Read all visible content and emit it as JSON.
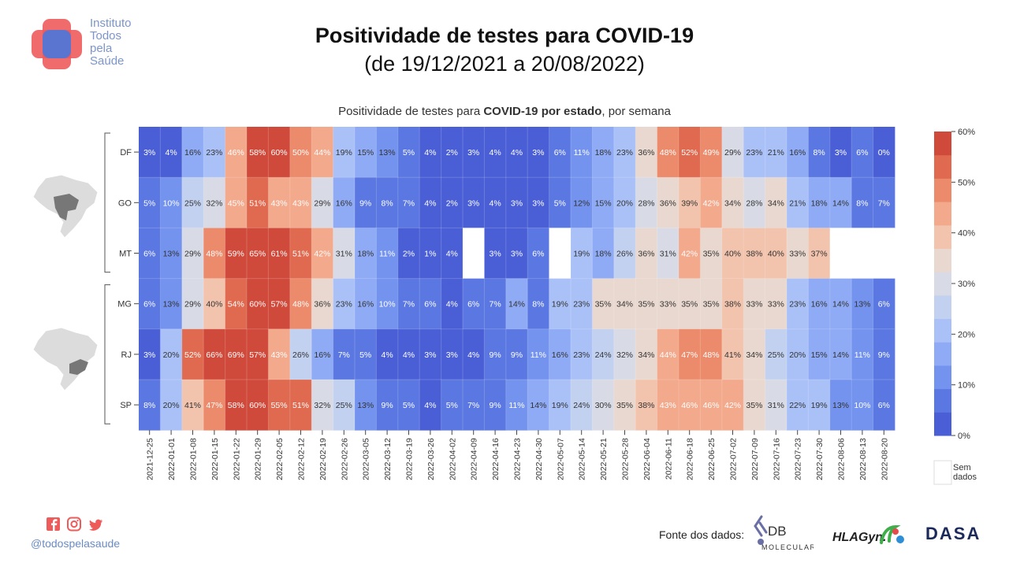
{
  "org": {
    "name_lines": [
      "Instituto",
      "Todos",
      "pela",
      "Saúde"
    ]
  },
  "header": {
    "title": "Positividade de testes para COVID-19",
    "subtitle": "(de 19/12/2021 a 20/08/2022)"
  },
  "chart_data": {
    "type": "heatmap",
    "title_parts": [
      {
        "text": "Positividade de testes para ",
        "bold": false
      },
      {
        "text": "COVID-19 por estado",
        "bold": true
      },
      {
        "text": ", por semana",
        "bold": false
      }
    ],
    "x": [
      "2021-12-25",
      "2022-01-01",
      "2022-01-08",
      "2022-01-15",
      "2022-01-22",
      "2022-01-29",
      "2022-02-05",
      "2022-02-12",
      "2022-02-19",
      "2022-02-26",
      "2022-03-05",
      "2022-03-12",
      "2022-03-19",
      "2022-03-26",
      "2022-04-02",
      "2022-04-09",
      "2022-04-16",
      "2022-04-23",
      "2022-04-30",
      "2022-05-07",
      "2022-05-14",
      "2022-05-21",
      "2022-05-28",
      "2022-06-04",
      "2022-06-11",
      "2022-06-18",
      "2022-06-25",
      "2022-07-02",
      "2022-07-09",
      "2022-07-16",
      "2022-07-23",
      "2022-07-30",
      "2022-08-06",
      "2022-08-13",
      "2022-08-20"
    ],
    "y": [
      "DF",
      "GO",
      "MT",
      "MG",
      "RJ",
      "SP"
    ],
    "values": [
      [
        3,
        4,
        16,
        23,
        46,
        58,
        60,
        50,
        44,
        19,
        15,
        13,
        5,
        4,
        2,
        3,
        4,
        4,
        3,
        6,
        11,
        18,
        23,
        36,
        48,
        52,
        49,
        29,
        23,
        21,
        16,
        8,
        3,
        6,
        0
      ],
      [
        5,
        10,
        25,
        32,
        45,
        51,
        43,
        43,
        29,
        16,
        9,
        8,
        7,
        4,
        2,
        3,
        4,
        3,
        3,
        5,
        12,
        15,
        20,
        28,
        36,
        39,
        42,
        34,
        28,
        34,
        21,
        18,
        14,
        8,
        7
      ],
      [
        6,
        13,
        29,
        48,
        59,
        65,
        61,
        51,
        42,
        31,
        18,
        11,
        2,
        1,
        4,
        null,
        3,
        3,
        6,
        null,
        19,
        18,
        26,
        36,
        31,
        42,
        35,
        40,
        38,
        40,
        33,
        37,
        null,
        null,
        null
      ],
      [
        6,
        13,
        29,
        40,
        54,
        60,
        57,
        48,
        36,
        23,
        16,
        10,
        7,
        6,
        4,
        6,
        7,
        14,
        8,
        19,
        23,
        35,
        34,
        35,
        33,
        35,
        35,
        38,
        33,
        33,
        23,
        16,
        14,
        13,
        6
      ],
      [
        3,
        20,
        52,
        66,
        69,
        57,
        43,
        26,
        16,
        7,
        5,
        4,
        4,
        3,
        3,
        4,
        9,
        9,
        11,
        16,
        23,
        24,
        32,
        34,
        44,
        47,
        48,
        41,
        34,
        25,
        20,
        15,
        14,
        11,
        9
      ],
      [
        8,
        20,
        41,
        47,
        58,
        60,
        55,
        51,
        32,
        25,
        13,
        9,
        5,
        4,
        5,
        7,
        9,
        11,
        14,
        19,
        24,
        30,
        35,
        38,
        43,
        46,
        46,
        42,
        35,
        31,
        22,
        19,
        13,
        10,
        6
      ]
    ],
    "unit": "%",
    "colorbar": {
      "range": [
        0,
        60
      ],
      "ticks": [
        "0%",
        "10%",
        "20%",
        "30%",
        "40%",
        "50%",
        "60%"
      ]
    },
    "colors": [
      "#4a5fd6",
      "#5b78e2",
      "#7493ee",
      "#8fabf5",
      "#aac1f8",
      "#c3d1f0",
      "#d8dbe6",
      "#e9d8cf",
      "#f2c3ad",
      "#f3a98c",
      "#ec8b6c",
      "#df6a50",
      "#d04a3c"
    ],
    "missing_label": [
      "Sem",
      "dados"
    ],
    "groups": [
      {
        "rows": [
          "DF",
          "GO",
          "MT"
        ]
      },
      {
        "rows": [
          "MG",
          "RJ",
          "SP"
        ]
      }
    ]
  },
  "footer": {
    "handle": "@todospelasaude",
    "source_label": "Fonte dos dados:",
    "db_logo": [
      "DB",
      "MOLECULAR"
    ],
    "hla_logo": "HLAGyn.",
    "dasa_logo": "DASA"
  },
  "icons": [
    "facebook-icon",
    "instagram-icon",
    "twitter-icon"
  ]
}
